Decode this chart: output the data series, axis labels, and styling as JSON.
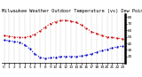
{
  "title": "Milwaukee Weather Outdoor Temperature (vs) Dew Point (Last 24 Hours)",
  "temp_values": [
    52,
    51,
    50,
    49,
    49,
    51,
    54,
    59,
    65,
    70,
    73,
    75,
    75,
    74,
    72,
    68,
    63,
    58,
    55,
    52,
    50,
    49,
    48,
    47
  ],
  "dew_values": [
    45,
    44,
    43,
    42,
    38,
    32,
    24,
    19,
    17,
    18,
    19,
    20,
    20,
    20,
    20,
    21,
    22,
    24,
    27,
    29,
    31,
    33,
    35,
    36
  ],
  "temp_color": "#cc0000",
  "dew_color": "#0000cc",
  "background_color": "#ffffff",
  "ylim": [
    10,
    85
  ],
  "ytick_values": [
    20,
    30,
    40,
    50,
    60,
    70,
    80
  ],
  "grid_color": "#999999",
  "title_fontsize": 3.8,
  "tick_fontsize": 3.0,
  "line_width": 0.8,
  "marker_size": 1.2,
  "n_points": 24
}
